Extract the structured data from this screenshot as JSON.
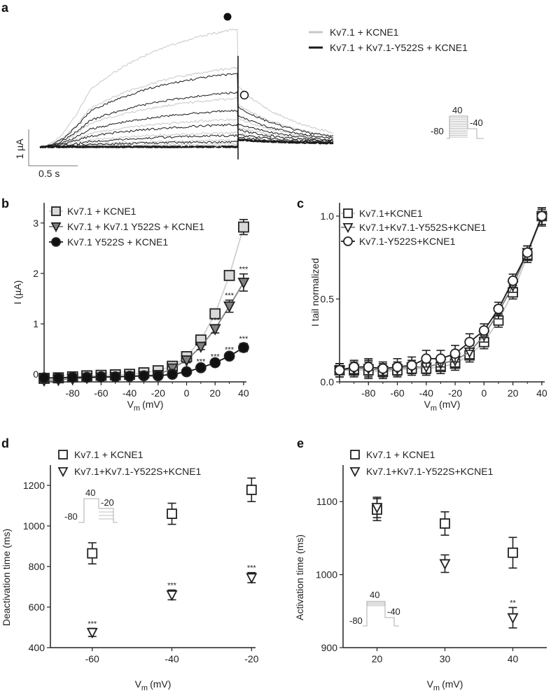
{
  "chart_data": [
    {
      "panel": "a",
      "type": "line",
      "legend": [
        {
          "label": "Kv7.1 + KCNE1",
          "color": "#c8c8c8"
        },
        {
          "label": "Kv7.1 + Kv7.1-Y522S + KCNE1",
          "color": "#1a1a1a"
        }
      ],
      "scale_bar": {
        "y_label": "1 µA",
        "x_label": "0.5 s"
      },
      "markers": {
        "filled_circle": "peak",
        "open_circle": "tail"
      },
      "protocol": {
        "top": "40",
        "hold": "-80",
        "tail": "-40"
      }
    },
    {
      "panel": "b",
      "type": "scatter",
      "ylabel": "I (µA)",
      "xlabel": {
        "symbol": "V",
        "sub": "m",
        "unit": "(mV)"
      },
      "xlim": [
        -100,
        42
      ],
      "ylim": [
        -0.15,
        3.4
      ],
      "xticks": [
        -80,
        -60,
        -40,
        -20,
        0,
        20,
        40
      ],
      "yticks": [
        0,
        1,
        2,
        3
      ],
      "legend_position": "top-left",
      "x": [
        -100,
        -90,
        -80,
        -70,
        -60,
        -50,
        -40,
        -30,
        -20,
        -10,
        0,
        10,
        20,
        30,
        40
      ],
      "series": [
        {
          "name": "Kv7.1 + KCNE1",
          "marker": "square",
          "fill": "#d9d9d9",
          "line": "#d0d0d0",
          "values": [
            -0.08,
            -0.07,
            -0.05,
            -0.03,
            -0.02,
            -0.01,
            0.0,
            0.03,
            0.07,
            0.16,
            0.35,
            0.68,
            1.2,
            1.96,
            2.92
          ],
          "errors": [
            0.03,
            0.03,
            0.03,
            0.03,
            0.03,
            0.03,
            0.03,
            0.03,
            0.03,
            0.04,
            0.05,
            0.06,
            0.07,
            0.08,
            0.15
          ],
          "stars": [
            "",
            "",
            "",
            "",
            "",
            "",
            "",
            "",
            "",
            "",
            "",
            "",
            "",
            "",
            ""
          ]
        },
        {
          "name": "Kv7.1 + Kv7.1 Y522S + KCNE1",
          "marker": "triangle-down",
          "fill": "#808080",
          "line": "#808080",
          "values": [
            -0.12,
            -0.11,
            -0.09,
            -0.07,
            -0.06,
            -0.05,
            -0.04,
            -0.03,
            -0.01,
            0.12,
            0.28,
            0.55,
            0.9,
            1.35,
            1.82
          ],
          "errors": [
            0.03,
            0.03,
            0.03,
            0.03,
            0.03,
            0.03,
            0.03,
            0.03,
            0.03,
            0.04,
            0.05,
            0.06,
            0.08,
            0.12,
            0.17
          ],
          "stars": [
            "",
            "",
            "",
            "",
            "",
            "",
            "",
            "",
            "",
            "",
            "",
            "",
            "***",
            "***",
            "***"
          ]
        },
        {
          "name": "Kv7.1 Y522S + KCNE1",
          "marker": "circle",
          "fill": "#111111",
          "line": "#111111",
          "values": [
            -0.07,
            -0.07,
            -0.06,
            -0.06,
            -0.05,
            -0.05,
            -0.04,
            -0.03,
            -0.03,
            0.0,
            0.05,
            0.13,
            0.23,
            0.36,
            0.53
          ],
          "errors": [
            0.02,
            0.02,
            0.02,
            0.02,
            0.02,
            0.02,
            0.02,
            0.02,
            0.02,
            0.02,
            0.02,
            0.03,
            0.03,
            0.04,
            0.08
          ],
          "stars": [
            "",
            "",
            "",
            "",
            "",
            "",
            "",
            "",
            "",
            "",
            "*",
            "***",
            "***",
            "***",
            "***"
          ]
        }
      ]
    },
    {
      "panel": "c",
      "type": "scatter",
      "ylabel": "I tail normalized",
      "xlabel": {
        "symbol": "V",
        "sub": "m",
        "unit": "(mV)"
      },
      "xlim": [
        -100,
        42
      ],
      "ylim": [
        0,
        1.08
      ],
      "xticks": [
        -80,
        -60,
        -40,
        -20,
        0,
        20,
        40
      ],
      "yticks": [
        "0.0",
        "0.5",
        "1.0"
      ],
      "legend_position": "top-left",
      "x": [
        -100,
        -90,
        -80,
        -70,
        -60,
        -50,
        -40,
        -30,
        -20,
        -10,
        0,
        10,
        20,
        30,
        40
      ],
      "series": [
        {
          "name": "Kv7.1+KCNE1",
          "marker": "square",
          "fill": "#ffffff",
          "line": "#c8c8c8",
          "values": [
            0.07,
            0.07,
            0.07,
            0.06,
            0.07,
            0.08,
            0.08,
            0.09,
            0.11,
            0.16,
            0.24,
            0.37,
            0.54,
            0.76,
            1.0
          ],
          "errors": [
            0.04,
            0.04,
            0.05,
            0.04,
            0.04,
            0.04,
            0.04,
            0.04,
            0.04,
            0.04,
            0.04,
            0.04,
            0.04,
            0.04,
            0.05
          ]
        },
        {
          "name": "Kv7.1+Kv7.1-Y552S+KCNE1",
          "marker": "triangle-down",
          "fill": "#ffffff",
          "line": "#808080",
          "values": [
            0.07,
            0.08,
            0.08,
            0.07,
            0.08,
            0.09,
            0.09,
            0.11,
            0.13,
            0.18,
            0.28,
            0.42,
            0.58,
            0.78,
            0.99
          ],
          "errors": [
            0.04,
            0.04,
            0.05,
            0.04,
            0.04,
            0.04,
            0.04,
            0.04,
            0.04,
            0.04,
            0.04,
            0.04,
            0.04,
            0.04,
            0.05
          ]
        },
        {
          "name": "Kv7.1-Y522S+KCNE1",
          "marker": "circle",
          "fill": "#ffffff",
          "line": "#1a1a1a",
          "values": [
            0.07,
            0.09,
            0.09,
            0.08,
            0.09,
            0.1,
            0.14,
            0.14,
            0.17,
            0.24,
            0.31,
            0.44,
            0.61,
            0.78,
            1.0
          ],
          "errors": [
            0.04,
            0.04,
            0.05,
            0.04,
            0.05,
            0.05,
            0.05,
            0.05,
            0.05,
            0.05,
            0.04,
            0.04,
            0.04,
            0.04,
            0.05
          ]
        }
      ]
    },
    {
      "panel": "d",
      "type": "scatter",
      "ylabel": "Deactivation time (ms)",
      "xlabel": {
        "symbol": "V",
        "sub": "m",
        "unit": "(mV)"
      },
      "xlim": [
        -70.5,
        -19
      ],
      "ylim": [
        400,
        1300
      ],
      "xticks": [
        -60,
        -40,
        -20
      ],
      "yticks": [
        400,
        600,
        800,
        1000,
        1200
      ],
      "legend_position": "top",
      "protocol": {
        "top": "40",
        "hold": "-80",
        "tail": "-20"
      },
      "x": [
        -60,
        -40,
        -20
      ],
      "series": [
        {
          "name": "Kv7.1 + KCNE1",
          "marker": "square",
          "fill": "#ffffff",
          "values": [
            865,
            1060,
            1178
          ],
          "errors": [
            52,
            52,
            58
          ],
          "stars": [
            "",
            "",
            ""
          ]
        },
        {
          "name": "Kv7.1+Kv7.1-Y522S+KCNE1",
          "marker": "triangle-down",
          "fill": "#ffffff",
          "values": [
            475,
            660,
            745
          ],
          "errors": [
            20,
            24,
            25
          ],
          "stars": [
            "***",
            "***",
            "***"
          ]
        }
      ]
    },
    {
      "panel": "e",
      "type": "scatter",
      "ylabel": "Activation time (ms)",
      "xlabel": {
        "symbol": "V",
        "sub": "m",
        "unit": "(mV)"
      },
      "xlim": [
        15,
        45
      ],
      "ylim": [
        900,
        1150
      ],
      "xticks": [
        20,
        30,
        40
      ],
      "yticks": [
        900,
        1000,
        1100
      ],
      "legend_position": "top",
      "protocol": {
        "top": "40",
        "hold": "-80",
        "tail": "-40"
      },
      "x": [
        20,
        30,
        40
      ],
      "series": [
        {
          "name": "Kv7.1 + KCNE1",
          "marker": "square",
          "fill": "#ffffff",
          "values": [
            1089,
            1070,
            1030
          ],
          "errors": [
            15,
            16,
            21
          ],
          "stars": [
            "",
            "",
            ""
          ]
        },
        {
          "name": "Kv7.1+Kv7.1-Y522S+KCNE1",
          "marker": "triangle-down",
          "fill": "#ffffff",
          "values": [
            1092,
            1015,
            941
          ],
          "errors": [
            14,
            12,
            14
          ],
          "stars": [
            "",
            "",
            "**"
          ]
        }
      ]
    }
  ]
}
